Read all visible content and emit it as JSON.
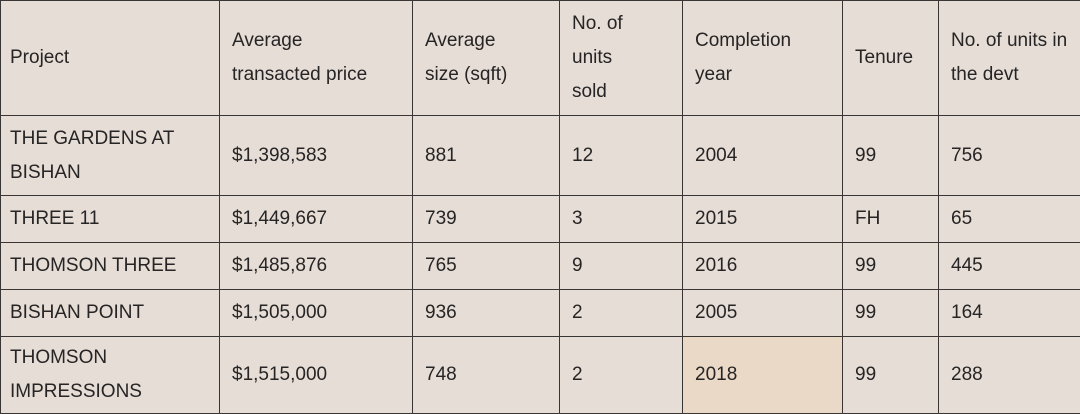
{
  "table": {
    "headers": [
      "Project",
      "Average transacted price",
      "Average size (sqft)",
      "No. of units sold",
      "Completion year",
      "Tenure",
      "No. of units in the devt"
    ],
    "rows": [
      [
        "THE GARDENS AT BISHAN",
        "$1,398,583",
        "881",
        "12",
        "2004",
        "99",
        "756"
      ],
      [
        "THREE 11",
        "$1,449,667",
        "739",
        "3",
        "2015",
        "FH",
        "65"
      ],
      [
        "THOMSON THREE",
        "$1,485,876",
        "765",
        "9",
        "2016",
        "99",
        "445"
      ],
      [
        "BISHAN POINT",
        "$1,505,000",
        "936",
        "2",
        "2005",
        "99",
        "164"
      ],
      [
        "THOMSON IMPRESSIONS",
        "$1,515,000",
        "748",
        "2",
        "2018",
        "99",
        "288"
      ]
    ]
  },
  "colors": {
    "background": "#e5ddd6",
    "highlight_cell": "#ebd9c8",
    "border": "#3a3535",
    "text": "#262424"
  }
}
